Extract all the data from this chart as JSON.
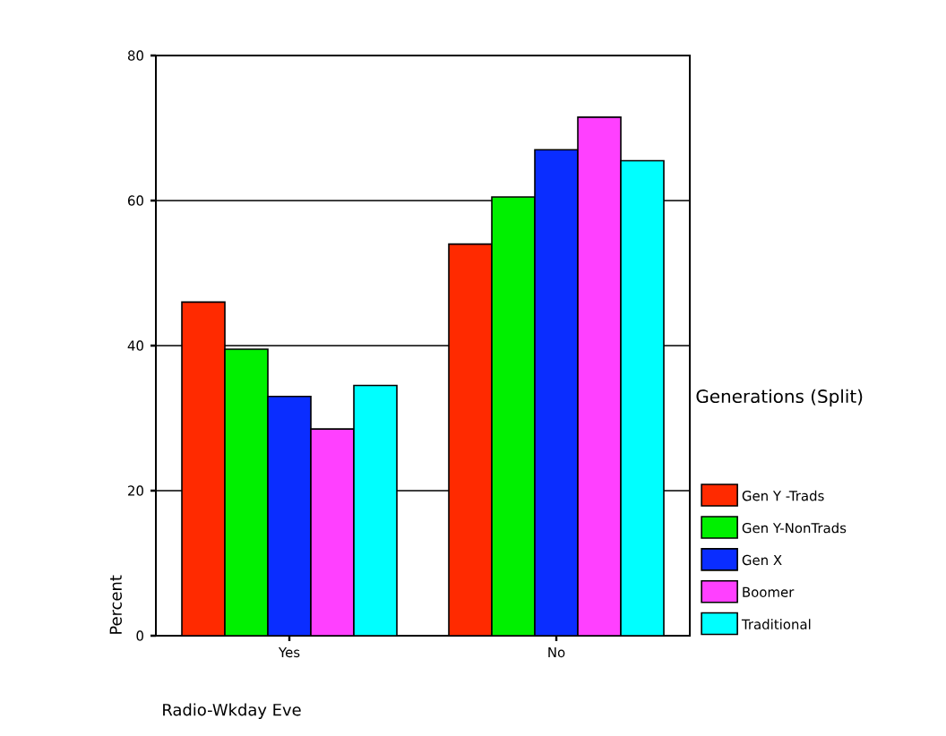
{
  "chart_data": {
    "type": "bar",
    "xlabel": "Radio-Wkday Eve",
    "ylabel": "Percent",
    "legend_title": "Generations (Split)",
    "categories": [
      "Yes",
      "No"
    ],
    "series": [
      {
        "name": "Gen Y -Trads",
        "color": "#ff2a00",
        "values": [
          46,
          54
        ]
      },
      {
        "name": "Gen Y-NonTrads",
        "color": "#00f000",
        "values": [
          39.5,
          60.5
        ]
      },
      {
        "name": "Gen X",
        "color": "#0a2dff",
        "values": [
          33,
          67
        ]
      },
      {
        "name": "Boomer",
        "color": "#ff40ff",
        "values": [
          28.5,
          71.5
        ]
      },
      {
        "name": "Traditional",
        "color": "#00ffff",
        "values": [
          34.5,
          65.5
        ]
      }
    ],
    "ylim": [
      0,
      80
    ],
    "yticks": [
      0,
      20,
      40,
      60,
      80
    ],
    "grid": "y",
    "legend": "right"
  }
}
